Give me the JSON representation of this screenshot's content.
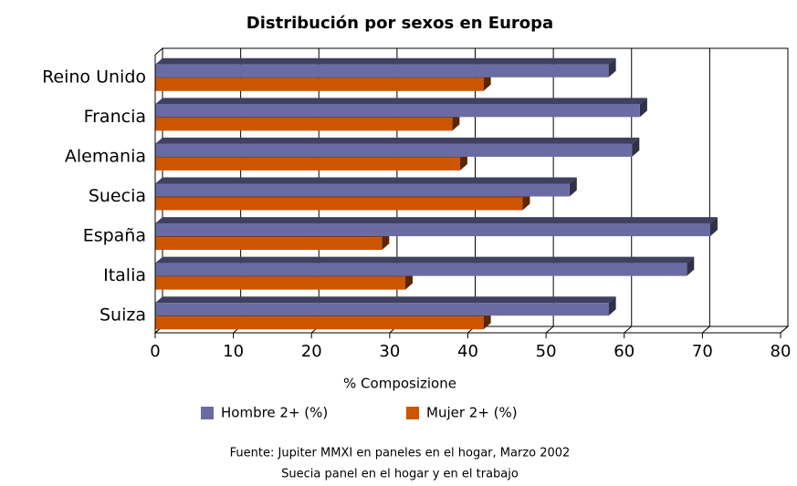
{
  "chart_data": {
    "type": "bar",
    "orientation": "horizontal",
    "title": "Distribución por sexos en Europa",
    "categories": [
      "Reino Unido",
      "Francia",
      "Alemania",
      "Suecia",
      "España",
      "Italia",
      "Suiza"
    ],
    "series": [
      {
        "name": "Hombre 2+ (%)",
        "color": "#6b6ba3",
        "values": [
          58,
          62,
          61,
          53,
          71,
          68,
          58
        ]
      },
      {
        "name": "Mujer 2+ (%)",
        "color": "#cc5500",
        "values": [
          42,
          38,
          39,
          47,
          29,
          32,
          42
        ]
      }
    ],
    "xlabel": "% Composizione",
    "xlim": [
      0,
      80
    ],
    "xticks": [
      0,
      10,
      20,
      30,
      40,
      50,
      60,
      70,
      80
    ],
    "grid": true,
    "legend": "bottom",
    "notes": [
      "Fuente: Jupiter MMXI  en paneles en el hogar, Marzo  2002",
      "Suecia panel en el hogar y en el trabajo"
    ]
  }
}
